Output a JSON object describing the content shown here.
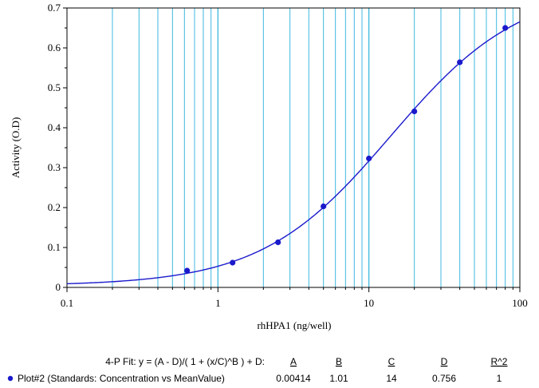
{
  "chart_data": {
    "type": "scatter",
    "xlabel": "rhHPA1 (ng/well)",
    "ylabel": "Activity (O.D)",
    "x_scale": "log",
    "xlim": [
      0.1,
      100
    ],
    "ylim": [
      0,
      0.7
    ],
    "x_ticks": [
      0.1,
      1,
      10,
      100
    ],
    "x_tick_labels": [
      "0.1",
      "1",
      "10",
      "100"
    ],
    "y_ticks": [
      0,
      0.1,
      0.2,
      0.3,
      0.4,
      0.5,
      0.6,
      0.7
    ],
    "y_tick_labels": [
      "0",
      "0.1",
      "0.2",
      "0.3",
      "0.4",
      "0.5",
      "0.6",
      "0.7"
    ],
    "grid": "vertical log grid lines",
    "series": [
      {
        "name": "Plot#2 (Standards: Concentration vs MeanValue)",
        "color": "#1a1acc",
        "x": [
          0.625,
          1.25,
          2.5,
          5,
          10,
          20,
          40,
          80
        ],
        "y": [
          0.042,
          0.062,
          0.113,
          0.203,
          0.323,
          0.441,
          0.564,
          0.65
        ]
      }
    ],
    "fit": {
      "model": "4-PL",
      "params": {
        "A": 0.00414,
        "B": 1.01,
        "C": 14,
        "D": 0.756
      },
      "color": "#1a1acc"
    },
    "fit_table": {
      "formula": "4-P Fit: y = (A - D)/( 1 + (x/C)^B ) + D:",
      "headers": [
        "A",
        "B",
        "C",
        "D",
        "R^2"
      ],
      "row_label": "Plot#2 (Standards: Concentration vs MeanValue)",
      "values": [
        "0.00414",
        "1.01",
        "14",
        "0.756",
        "1"
      ]
    }
  },
  "colors": {
    "grid": "#3fb8e0",
    "curve": "#1a1acc",
    "axis": "#000000"
  }
}
